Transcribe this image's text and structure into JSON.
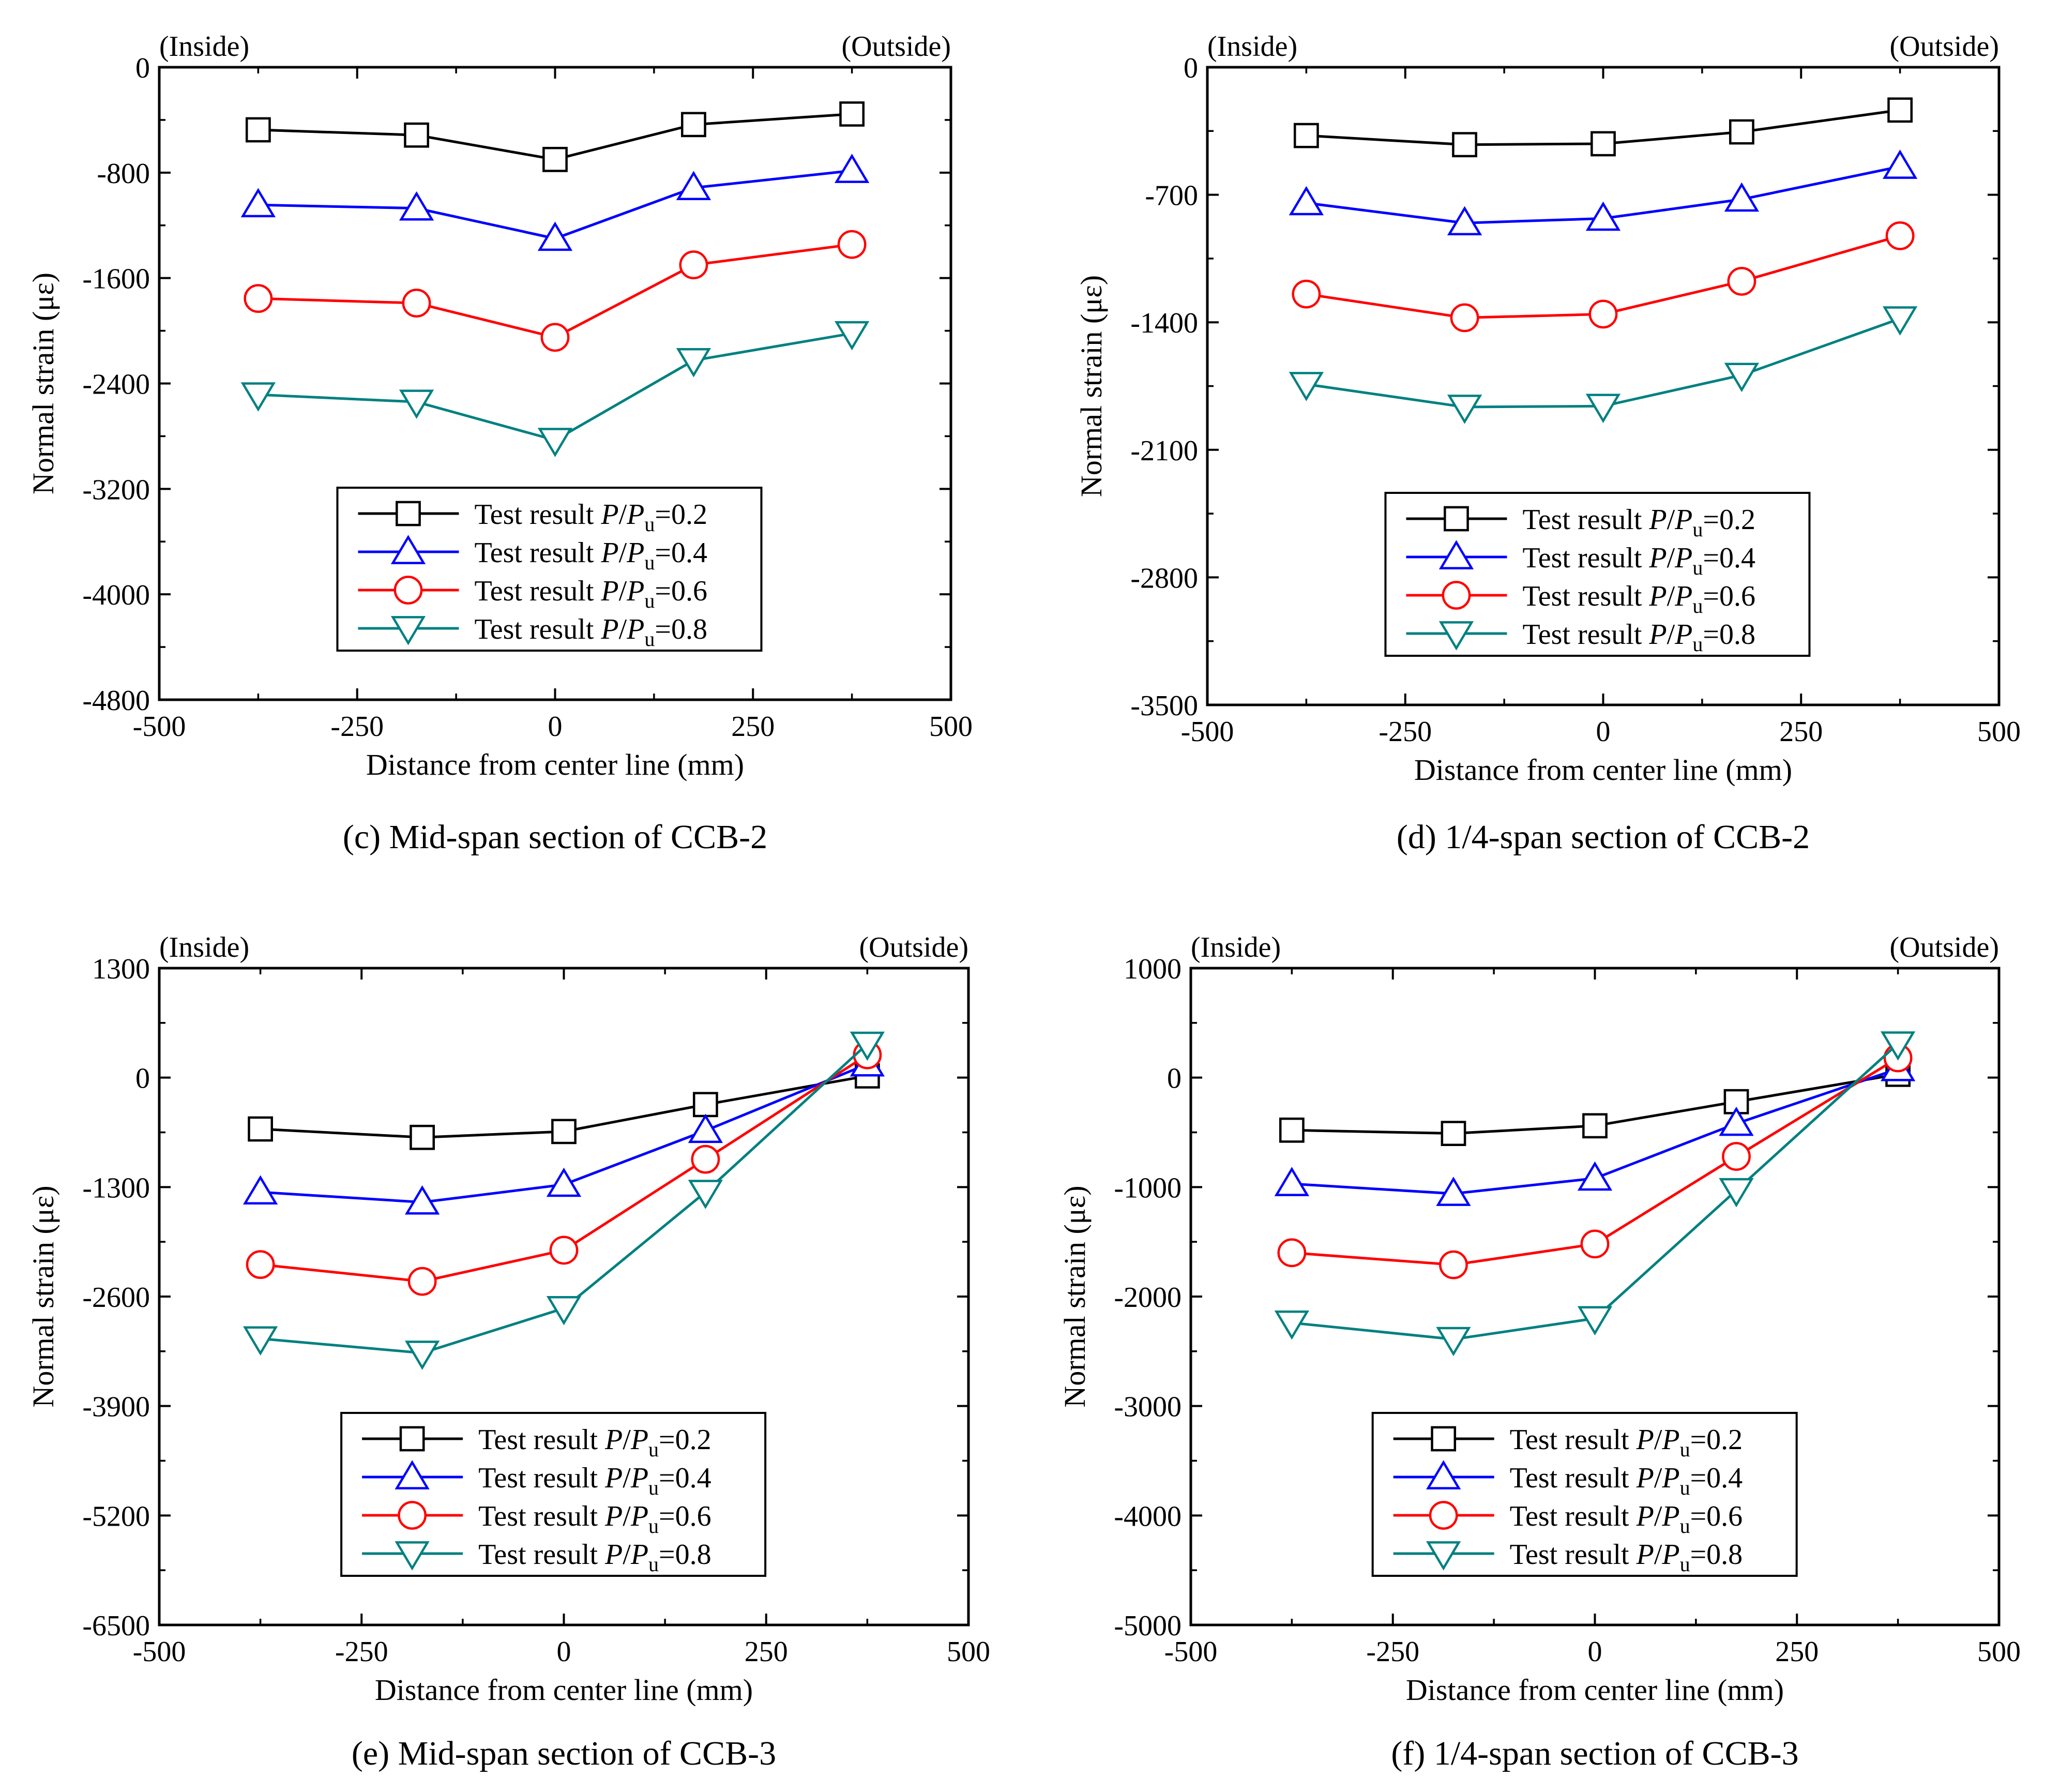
{
  "chart_data": [
    {
      "type": "line",
      "caption": "(c) Mid-span section of CCB-2",
      "xlabel": "Distance from center line (mm)",
      "ylabel": "Normal strain (με)",
      "corner_left": "(Inside)",
      "corner_right": "(Outside)",
      "xlim": [
        -500,
        500
      ],
      "ylim": [
        -4800,
        0
      ],
      "xticks": [
        -500,
        -250,
        0,
        250,
        500
      ],
      "yticks": [
        0,
        -800,
        -1600,
        -2400,
        -3200,
        -4000,
        -4800
      ],
      "x": [
        -375,
        -175,
        0,
        175,
        375
      ],
      "legend_position": "bottom-center",
      "series": [
        {
          "name": "Test result P/Pu=0.2",
          "prefix": "Test result ",
          "ratio": "0.2",
          "color": "#000000",
          "marker": "square",
          "values": [
            -475,
            -515,
            -700,
            -435,
            -355
          ]
        },
        {
          "name": "Test result P/Pu=0.4",
          "prefix": "Test result ",
          "ratio": "0.4",
          "color": "#0000ff",
          "marker": "triangle-up",
          "values": [
            -1045,
            -1070,
            -1300,
            -915,
            -785
          ]
        },
        {
          "name": "Test result P/Pu=0.6",
          "prefix": "Test result ",
          "ratio": "0.6",
          "color": "#ff0000",
          "marker": "circle",
          "values": [
            -1755,
            -1790,
            -2050,
            -1500,
            -1345
          ]
        },
        {
          "name": "Test result P/Pu=0.8",
          "prefix": "Test result ",
          "ratio": "0.8",
          "color": "#008080",
          "marker": "triangle-down",
          "values": [
            -2485,
            -2540,
            -2830,
            -2225,
            -2020
          ]
        }
      ]
    },
    {
      "type": "line",
      "caption": "(d) 1/4-span section of CCB-2",
      "xlabel": "Distance from center line (mm)",
      "ylabel": "Normal strain (με)",
      "corner_left": "(Inside)",
      "corner_right": "(Outside)",
      "xlim": [
        -500,
        500
      ],
      "ylim": [
        -3500,
        0
      ],
      "xticks": [
        -500,
        -250,
        0,
        250,
        500
      ],
      "yticks": [
        0,
        -700,
        -1400,
        -2100,
        -2800,
        -3500
      ],
      "x": [
        -375,
        -175,
        0,
        175,
        375
      ],
      "legend_position": "bottom-center",
      "series": [
        {
          "name": "Test result P/Pu=0.2",
          "prefix": "Test result ",
          "ratio": "0.2",
          "color": "#000000",
          "marker": "square",
          "values": [
            -375,
            -425,
            -420,
            -355,
            -235
          ]
        },
        {
          "name": "Test result P/Pu=0.4",
          "prefix": "Test result ",
          "ratio": "0.4",
          "color": "#0000ff",
          "marker": "triangle-up",
          "values": [
            -745,
            -855,
            -830,
            -725,
            -545
          ]
        },
        {
          "name": "Test result P/Pu=0.6",
          "prefix": "Test result ",
          "ratio": "0.6",
          "color": "#ff0000",
          "marker": "circle",
          "values": [
            -1245,
            -1375,
            -1355,
            -1175,
            -925
          ]
        },
        {
          "name": "Test result P/Pu=0.8",
          "prefix": "Test result ",
          "ratio": "0.8",
          "color": "#008080",
          "marker": "triangle-down",
          "values": [
            -1740,
            -1865,
            -1860,
            -1690,
            -1380
          ]
        }
      ]
    },
    {
      "type": "line",
      "caption": "(e) Mid-span section of CCB-3",
      "xlabel": "Distance from center line (mm)",
      "ylabel": "Normal strain (με)",
      "corner_left": "(Inside)",
      "corner_right": "(Outside)",
      "xlim": [
        -500,
        500
      ],
      "ylim": [
        -6500,
        1300
      ],
      "xticks": [
        -500,
        -250,
        0,
        250,
        500
      ],
      "yticks": [
        1300,
        0,
        -1300,
        -2600,
        -3900,
        -5200,
        -6500
      ],
      "x": [
        -375,
        -175,
        0,
        175,
        375
      ],
      "legend_position": "bottom-center",
      "series": [
        {
          "name": "Test result P/Pu=0.2",
          "prefix": "Test result ",
          "ratio": "0.2",
          "color": "#000000",
          "marker": "square",
          "values": [
            -610,
            -710,
            -640,
            -320,
            20
          ]
        },
        {
          "name": "Test result P/Pu=0.4",
          "prefix": "Test result ",
          "ratio": "0.4",
          "color": "#0000ff",
          "marker": "triangle-up",
          "values": [
            -1360,
            -1480,
            -1270,
            -630,
            160
          ]
        },
        {
          "name": "Test result P/Pu=0.6",
          "prefix": "Test result ",
          "ratio": "0.6",
          "color": "#ff0000",
          "marker": "circle",
          "values": [
            -2220,
            -2420,
            -2050,
            -970,
            270
          ]
        },
        {
          "name": "Test result P/Pu=0.8",
          "prefix": "Test result ",
          "ratio": "0.8",
          "color": "#008080",
          "marker": "triangle-down",
          "values": [
            -3100,
            -3270,
            -2740,
            -1360,
            400
          ]
        }
      ]
    },
    {
      "type": "line",
      "caption": "(f) 1/4-span section of CCB-3",
      "xlabel": "Distance from center line (mm)",
      "ylabel": "Normal strain (με)",
      "corner_left": "(Inside)",
      "corner_right": "(Outside)",
      "xlim": [
        -500,
        500
      ],
      "ylim": [
        -5000,
        1000
      ],
      "xticks": [
        -500,
        -250,
        0,
        250,
        500
      ],
      "yticks": [
        1000,
        0,
        -1000,
        -2000,
        -3000,
        -4000,
        -5000
      ],
      "x": [
        -375,
        -175,
        0,
        175,
        375
      ],
      "legend_position": "bottom-center",
      "series": [
        {
          "name": "Test result P/Pu=0.2",
          "prefix": "Test result ",
          "ratio": "0.2",
          "color": "#000000",
          "marker": "square",
          "values": [
            -480,
            -510,
            -440,
            -220,
            30
          ]
        },
        {
          "name": "Test result P/Pu=0.4",
          "prefix": "Test result ",
          "ratio": "0.4",
          "color": "#0000ff",
          "marker": "triangle-up",
          "values": [
            -970,
            -1060,
            -920,
            -420,
            80
          ]
        },
        {
          "name": "Test result P/Pu=0.6",
          "prefix": "Test result ",
          "ratio": "0.6",
          "color": "#ff0000",
          "marker": "circle",
          "values": [
            -1600,
            -1710,
            -1520,
            -720,
            180
          ]
        },
        {
          "name": "Test result P/Pu=0.8",
          "prefix": "Test result ",
          "ratio": "0.8",
          "color": "#008080",
          "marker": "triangle-down",
          "values": [
            -2240,
            -2390,
            -2200,
            -1030,
            310
          ]
        }
      ]
    }
  ]
}
